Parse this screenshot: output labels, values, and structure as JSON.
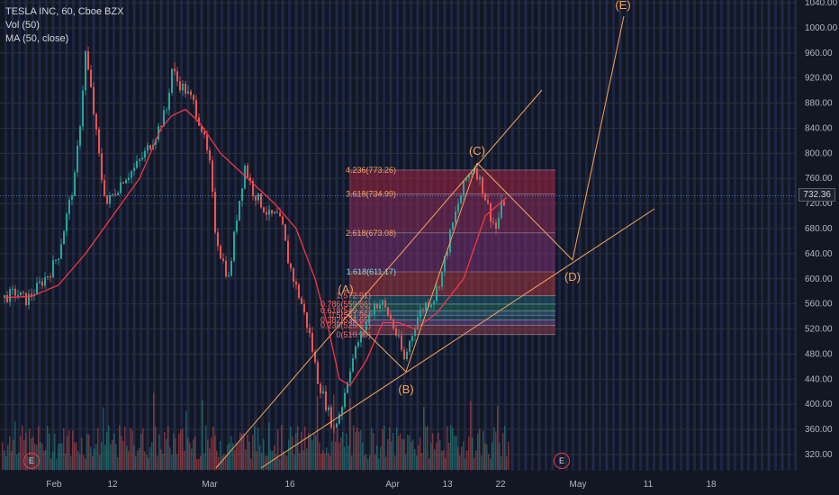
{
  "legend": {
    "symbol_line": "TESLA INC, 60, Cboe BZX",
    "indicator1": "Vol (50)",
    "indicator2": "MA (50, close)"
  },
  "last_price": "732.36",
  "event_marker": "E",
  "colors": {
    "background": "#131722",
    "up": "#26a69a",
    "down": "#ef5350",
    "ma": "#f23645",
    "drawing": "#f7a35c",
    "axis_text": "#b2b5be"
  },
  "chart_data": {
    "type": "candlestick",
    "yaxis": {
      "ticks": [
        320,
        360,
        400,
        440,
        480,
        520,
        560,
        600,
        640,
        680,
        720,
        760,
        800,
        840,
        880,
        920,
        960,
        1000,
        1040
      ],
      "tick_labels": [
        "320.00",
        "360.00",
        "400.00",
        "440.00",
        "480.00",
        "520.00",
        "560.00",
        "600.00",
        "640.00",
        "680.00",
        "720.00",
        "760.00",
        "800.00",
        "840.00",
        "880.00",
        "920.00",
        "960.00",
        "1000.00",
        "1040.00"
      ]
    },
    "xaxis": {
      "tick_labels": [
        "Feb",
        "12",
        "Mar",
        "16",
        "Apr",
        "13",
        "22",
        "May",
        "11",
        "18"
      ]
    },
    "price_path": [
      [
        0,
        570
      ],
      [
        4,
        578
      ],
      [
        8,
        566
      ],
      [
        11,
        580
      ],
      [
        14,
        596
      ],
      [
        17,
        612
      ],
      [
        20,
        640
      ],
      [
        23,
        700
      ],
      [
        26,
        760
      ],
      [
        28,
        850
      ],
      [
        30,
        960
      ],
      [
        32,
        900
      ],
      [
        34,
        830
      ],
      [
        36,
        760
      ],
      [
        38,
        720
      ],
      [
        41,
        740
      ],
      [
        44,
        760
      ],
      [
        48,
        775
      ],
      [
        52,
        800
      ],
      [
        56,
        830
      ],
      [
        60,
        870
      ],
      [
        62,
        935
      ],
      [
        64,
        915
      ],
      [
        67,
        900
      ],
      [
        70,
        880
      ],
      [
        73,
        840
      ],
      [
        76,
        780
      ],
      [
        78,
        680
      ],
      [
        80,
        640
      ],
      [
        83,
        600
      ],
      [
        86,
        700
      ],
      [
        89,
        780
      ],
      [
        92,
        740
      ],
      [
        95,
        720
      ],
      [
        98,
        700
      ],
      [
        101,
        700
      ],
      [
        103,
        680
      ],
      [
        105,
        630
      ],
      [
        107,
        600
      ],
      [
        110,
        560
      ],
      [
        113,
        510
      ],
      [
        116,
        440
      ],
      [
        119,
        400
      ],
      [
        122,
        360
      ],
      [
        125,
        400
      ],
      [
        128,
        460
      ],
      [
        131,
        500
      ],
      [
        134,
        530
      ],
      [
        137,
        560
      ],
      [
        140,
        560
      ],
      [
        143,
        535
      ],
      [
        146,
        500
      ],
      [
        148,
        470
      ],
      [
        150,
        500
      ],
      [
        153,
        540
      ],
      [
        156,
        560
      ],
      [
        159,
        570
      ],
      [
        162,
        610
      ],
      [
        165,
        670
      ],
      [
        168,
        720
      ],
      [
        171,
        760
      ],
      [
        174,
        780
      ],
      [
        177,
        745
      ],
      [
        180,
        700
      ],
      [
        182,
        680
      ],
      [
        184,
        715
      ],
      [
        186,
        730
      ]
    ],
    "ma50_path": [
      [
        0,
        570
      ],
      [
        10,
        572
      ],
      [
        20,
        590
      ],
      [
        30,
        640
      ],
      [
        40,
        700
      ],
      [
        50,
        760
      ],
      [
        58,
        840
      ],
      [
        62,
        860
      ],
      [
        67,
        870
      ],
      [
        72,
        850
      ],
      [
        80,
        800
      ],
      [
        90,
        760
      ],
      [
        100,
        720
      ],
      [
        108,
        680
      ],
      [
        115,
        600
      ],
      [
        120,
        520
      ],
      [
        124,
        440
      ],
      [
        128,
        430
      ],
      [
        134,
        470
      ],
      [
        140,
        530
      ],
      [
        146,
        530
      ],
      [
        152,
        520
      ],
      [
        160,
        545
      ],
      [
        170,
        600
      ],
      [
        178,
        700
      ],
      [
        186,
        730
      ]
    ],
    "fibonacci": [
      {
        "label": "4.236(773.26)",
        "value": 773.26
      },
      {
        "label": "3.618(734.99)",
        "value": 734.99
      },
      {
        "label": "2.618(673.08)",
        "value": 673.08
      },
      {
        "label": "1.618(611.17)",
        "value": 611.17
      },
      {
        "label": "1(572.91)",
        "value": 572.91
      },
      {
        "label": "0.786(559.66)",
        "value": 559.66
      },
      {
        "label": "0.618(549.27)",
        "value": 549.27
      },
      {
        "label": "0.5(541.96)",
        "value": 541.96
      },
      {
        "label": "0.382(534.65)",
        "value": 534.65
      },
      {
        "label": "0.236(525.61)",
        "value": 525.61
      },
      {
        "label": "0(510.99)",
        "value": 510.99
      }
    ],
    "wave_points": [
      {
        "label": "(A)",
        "t": 137,
        "price": 565
      },
      {
        "label": "(B)",
        "t": 148,
        "price": 448
      },
      {
        "label": "(C)",
        "t": 174,
        "price": 780
      },
      {
        "label": "(D)",
        "t": 206,
        "price": 633
      },
      {
        "label": "(E)",
        "t": 226,
        "price": 1055
      }
    ]
  }
}
